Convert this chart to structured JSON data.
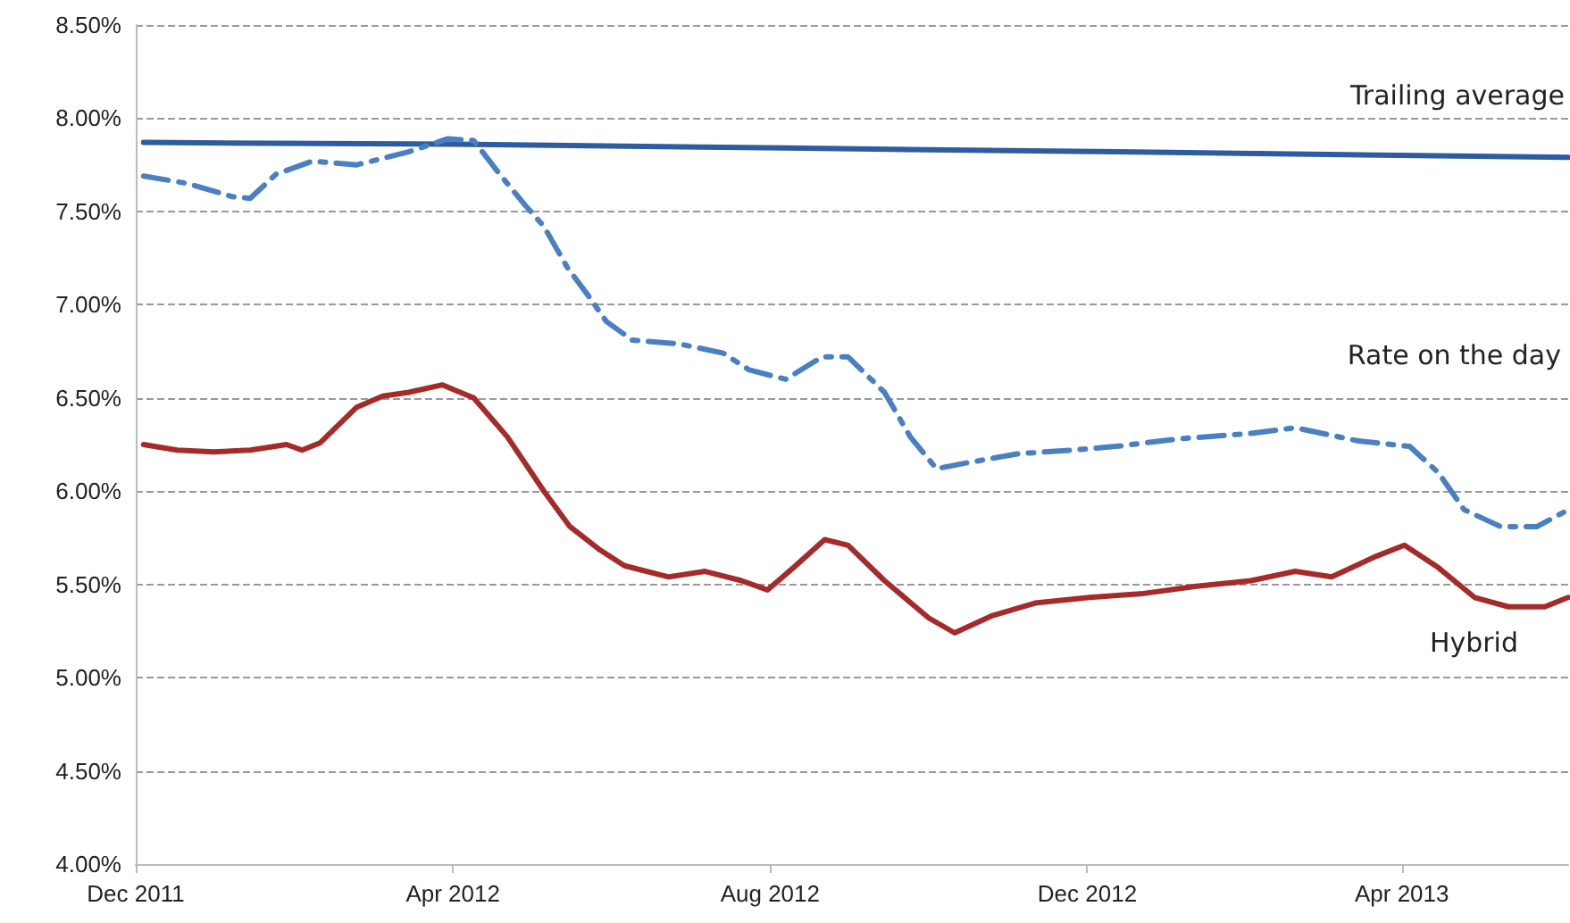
{
  "chart_data": {
    "type": "line",
    "xlim": [
      "2011-12-01",
      "2013-06-04"
    ],
    "xticks": [
      {
        "value": "2011-12-01",
        "label": "Dec 2011"
      },
      {
        "value": "2012-04-01",
        "label": "Apr 2012"
      },
      {
        "value": "2012-08-01",
        "label": "Aug 2012"
      },
      {
        "value": "2012-12-01",
        "label": "Dec 2012"
      },
      {
        "value": "2013-04-01",
        "label": "Apr 2013"
      }
    ],
    "ylim": [
      4,
      8.5
    ],
    "yticks": [
      {
        "value": 4,
        "label": "4.00%"
      },
      {
        "value": 4.5,
        "label": "4.50%"
      },
      {
        "value": 5,
        "label": "5.00%"
      },
      {
        "value": 5.5,
        "label": "5.50%"
      },
      {
        "value": 6,
        "label": "6.00%"
      },
      {
        "value": 6.5,
        "label": "6.50%"
      },
      {
        "value": 7,
        "label": "7.00%"
      },
      {
        "value": 7.5,
        "label": "7.50%"
      },
      {
        "value": 8,
        "label": "8.00%"
      },
      {
        "value": 8.5,
        "label": "8.50%"
      }
    ],
    "grid": "y",
    "legend": false,
    "marker": "none",
    "series": [
      {
        "name": "Trailing average",
        "color": "#2e5c9e",
        "line_style": "solid",
        "x": [
          "2011-12-04",
          "2012-04-09",
          "2012-08-07",
          "2012-12-12",
          "2013-06-04"
        ],
        "values": [
          7.87,
          7.86,
          7.84,
          7.82,
          7.79
        ]
      },
      {
        "name": "Rate on the day",
        "color": "#4a7fc1",
        "line_style": "dashed",
        "x": [
          "2011-12-04",
          "2011-12-21",
          "2012-01-07",
          "2012-01-14",
          "2012-01-24",
          "2012-02-07",
          "2012-02-24",
          "2012-03-15",
          "2012-03-30",
          "2012-04-09",
          "2012-04-19",
          "2012-04-29",
          "2012-05-06",
          "2012-05-15",
          "2012-05-23",
          "2012-05-30",
          "2012-06-09",
          "2012-06-27",
          "2012-07-14",
          "2012-07-24",
          "2012-08-07",
          "2012-08-21",
          "2012-08-31",
          "2012-09-14",
          "2012-09-24",
          "2012-10-04",
          "2012-10-15",
          "2012-11-04",
          "2012-11-25",
          "2012-12-12",
          "2013-01-05",
          "2013-02-02",
          "2013-02-19",
          "2013-03-15",
          "2013-04-04",
          "2013-04-15",
          "2013-04-25",
          "2013-05-09",
          "2013-05-23",
          "2013-06-04"
        ],
        "values": [
          7.69,
          7.65,
          7.58,
          7.57,
          7.7,
          7.77,
          7.75,
          7.82,
          7.89,
          7.88,
          7.7,
          7.53,
          7.42,
          7.2,
          7.05,
          6.91,
          6.81,
          6.79,
          6.74,
          6.65,
          6.6,
          6.72,
          6.72,
          6.53,
          6.29,
          6.12,
          6.15,
          6.2,
          6.22,
          6.24,
          6.28,
          6.31,
          6.34,
          6.27,
          6.24,
          6.1,
          5.9,
          5.81,
          5.81,
          5.9
        ]
      },
      {
        "name": "Hybrid",
        "color": "#a52a2a",
        "line_style": "solid",
        "x": [
          "2011-12-04",
          "2011-12-17",
          "2011-12-31",
          "2012-01-14",
          "2012-01-28",
          "2012-02-03",
          "2012-02-10",
          "2012-02-24",
          "2012-03-05",
          "2012-03-15",
          "2012-03-28",
          "2012-04-09",
          "2012-04-22",
          "2012-05-06",
          "2012-05-16",
          "2012-05-27",
          "2012-06-06",
          "2012-06-23",
          "2012-07-07",
          "2012-07-21",
          "2012-07-31",
          "2012-08-10",
          "2012-08-22",
          "2012-08-31",
          "2012-09-14",
          "2012-10-01",
          "2012-10-11",
          "2012-10-25",
          "2012-11-11",
          "2012-12-02",
          "2012-12-22",
          "2013-01-12",
          "2013-02-02",
          "2013-02-19",
          "2013-03-05",
          "2013-03-22",
          "2013-04-02",
          "2013-04-15",
          "2013-04-29",
          "2013-05-12",
          "2013-05-26",
          "2013-06-04"
        ],
        "values": [
          6.25,
          6.22,
          6.21,
          6.22,
          6.25,
          6.22,
          6.26,
          6.45,
          6.51,
          6.53,
          6.57,
          6.5,
          6.29,
          6.0,
          5.81,
          5.69,
          5.6,
          5.54,
          5.57,
          5.52,
          5.47,
          5.59,
          5.74,
          5.71,
          5.52,
          5.32,
          5.24,
          5.33,
          5.4,
          5.43,
          5.45,
          5.49,
          5.52,
          5.57,
          5.54,
          5.65,
          5.71,
          5.59,
          5.43,
          5.38,
          5.38,
          5.43
        ]
      }
    ]
  }
}
